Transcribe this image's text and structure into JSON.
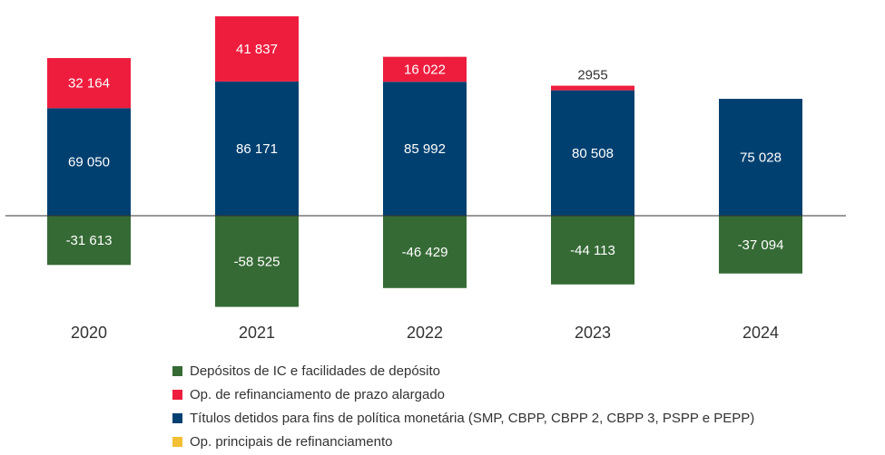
{
  "chart_data": {
    "type": "bar",
    "stacked": true,
    "categories": [
      "2020",
      "2021",
      "2022",
      "2023",
      "2024"
    ],
    "series": [
      {
        "name": "Depósitos de IC e facilidades de depósito",
        "color": "#356a35",
        "values": [
          -31613,
          -58525,
          -46429,
          -44113,
          -37094
        ],
        "labels": [
          "-31 613",
          "-58 525",
          "-46 429",
          "-44 113",
          "-37 094"
        ]
      },
      {
        "name": "Títulos detidos para fins de política monetária (SMP, CBPP, CBPP 2, CBPP 3, PSPP e PEPP)",
        "color": "#004070",
        "values": [
          69050,
          86171,
          85992,
          80508,
          75028
        ],
        "labels": [
          "69 050",
          "86 171",
          "85 992",
          "80 508",
          "75 028"
        ]
      },
      {
        "name": "Op. de refinanciamento de prazo alargado",
        "color": "#ee1d3e",
        "values": [
          32164,
          41837,
          16022,
          2955,
          0
        ],
        "labels": [
          "32 164",
          "41 837",
          "16 022",
          "2955",
          ""
        ]
      },
      {
        "name": "Op. principais de refinanciamento",
        "color": "#f2c034",
        "values": [
          0,
          0,
          0,
          0,
          0
        ],
        "labels": [
          "",
          "",
          "",
          "",
          ""
        ]
      }
    ],
    "legend_order": [
      0,
      2,
      1,
      3
    ],
    "legend_position": "bottom-left",
    "grid": false,
    "xlabel": "",
    "ylabel": "",
    "title": ""
  }
}
